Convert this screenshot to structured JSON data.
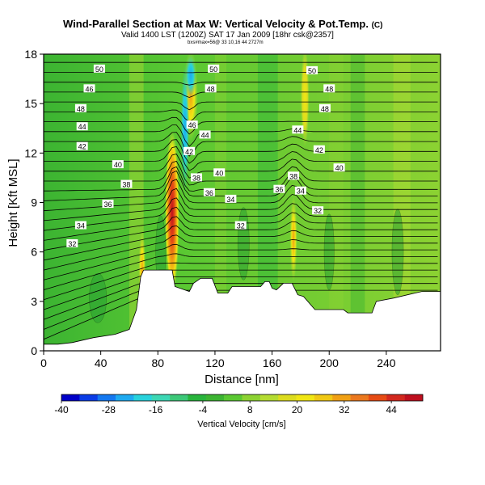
{
  "chart_data": {
    "type": "heatmap",
    "title": "Wind-Parallel Section at Max W: Vertical Velocity & Pot.Temp.",
    "title_mark": "(C)",
    "subtitle": "Valid 1400 LST (1200Z) SAT 17 Jan 2009",
    "subtitle_note": "[18hr csk@2357]",
    "small_text": "bxs#max=56@ 33 10,16 44 2727m",
    "xlabel": "Distance [nm]",
    "ylabel": "Height [Kft MSL]",
    "xlim": [
      0,
      278
    ],
    "ylim": [
      0,
      18
    ],
    "x_ticks": [
      0,
      40,
      80,
      120,
      160,
      200,
      240
    ],
    "y_ticks": [
      0,
      3,
      6,
      9,
      12,
      15,
      18
    ],
    "colorbar": {
      "label": "Vertical Velocity [cm/s]",
      "min": -40,
      "max": 52,
      "ticks": [
        -40,
        -28,
        -16,
        -4,
        8,
        20,
        32,
        44
      ],
      "colors": [
        "#0000c8",
        "#0a3ce6",
        "#1478f0",
        "#1eaaf0",
        "#28d2dc",
        "#3cd7b4",
        "#3cc878",
        "#28b43c",
        "#3cb432",
        "#5ac832",
        "#8cd232",
        "#b4dc32",
        "#dcdc1e",
        "#f0e614",
        "#f0c814",
        "#f0a014",
        "#eb781e",
        "#e64b14",
        "#d2281e",
        "#be0f1e"
      ]
    },
    "contour_labels": [
      {
        "text": "50",
        "x": 39,
        "y": 17.1
      },
      {
        "text": "46",
        "x": 32,
        "y": 15.9
      },
      {
        "text": "48",
        "x": 26,
        "y": 14.7
      },
      {
        "text": "44",
        "x": 27,
        "y": 13.6
      },
      {
        "text": "42",
        "x": 27,
        "y": 12.4
      },
      {
        "text": "40",
        "x": 52,
        "y": 11.3
      },
      {
        "text": "38",
        "x": 58,
        "y": 10.1
      },
      {
        "text": "36",
        "x": 45,
        "y": 8.9
      },
      {
        "text": "34",
        "x": 26,
        "y": 7.6
      },
      {
        "text": "32",
        "x": 20,
        "y": 6.5
      },
      {
        "text": "50",
        "x": 119,
        "y": 17.1
      },
      {
        "text": "48",
        "x": 117,
        "y": 15.9
      },
      {
        "text": "46",
        "x": 104,
        "y": 13.7
      },
      {
        "text": "44",
        "x": 113,
        "y": 13.1
      },
      {
        "text": "42",
        "x": 102,
        "y": 12.1
      },
      {
        "text": "38",
        "x": 107,
        "y": 10.5
      },
      {
        "text": "40",
        "x": 123,
        "y": 10.8
      },
      {
        "text": "36",
        "x": 116,
        "y": 9.6
      },
      {
        "text": "34",
        "x": 131,
        "y": 9.2
      },
      {
        "text": "32",
        "x": 138,
        "y": 7.6
      },
      {
        "text": "36",
        "x": 165,
        "y": 9.8
      },
      {
        "text": "38",
        "x": 175,
        "y": 10.6
      },
      {
        "text": "34",
        "x": 180,
        "y": 9.7
      },
      {
        "text": "32",
        "x": 192,
        "y": 8.5
      },
      {
        "text": "50",
        "x": 188,
        "y": 17.0
      },
      {
        "text": "48",
        "x": 200,
        "y": 15.9
      },
      {
        "text": "48",
        "x": 197,
        "y": 14.7
      },
      {
        "text": "44",
        "x": 178,
        "y": 13.4
      },
      {
        "text": "42",
        "x": 193,
        "y": 12.2
      },
      {
        "text": "40",
        "x": 207,
        "y": 11.1
      }
    ],
    "terrain": [
      [
        0,
        0.4
      ],
      [
        10,
        0.4
      ],
      [
        20,
        0.5
      ],
      [
        35,
        0.8
      ],
      [
        50,
        1.0
      ],
      [
        60,
        1.3
      ],
      [
        65,
        2.5
      ],
      [
        68,
        4.5
      ],
      [
        70,
        4.9
      ],
      [
        90,
        4.9
      ],
      [
        92,
        3.9
      ],
      [
        102,
        3.6
      ],
      [
        105,
        4.1
      ],
      [
        110,
        4.4
      ],
      [
        118,
        4.4
      ],
      [
        122,
        3.5
      ],
      [
        129,
        3.5
      ],
      [
        132,
        3.9
      ],
      [
        152,
        3.9
      ],
      [
        155,
        4.2
      ],
      [
        158,
        4.2
      ],
      [
        160,
        3.8
      ],
      [
        163,
        3.7
      ],
      [
        168,
        4.1
      ],
      [
        174,
        4.1
      ],
      [
        178,
        3.4
      ],
      [
        182,
        3.3
      ],
      [
        190,
        2.5
      ],
      [
        210,
        2.5
      ],
      [
        213,
        2.3
      ],
      [
        230,
        2.3
      ],
      [
        233,
        3.0
      ],
      [
        245,
        3.2
      ],
      [
        260,
        3.5
      ],
      [
        265,
        3.6
      ],
      [
        278,
        3.6
      ]
    ],
    "updrafts": [
      {
        "x": 90,
        "y": 8.4,
        "rx": 5,
        "ry": 5,
        "value": 50
      },
      {
        "x": 103,
        "y": 15.5,
        "rx": 5,
        "ry": 2.8,
        "value": 28
      },
      {
        "x": 69,
        "y": 4.9,
        "rx": 2.5,
        "ry": 2.4,
        "value": 22
      },
      {
        "x": 175,
        "y": 6.8,
        "rx": 2.6,
        "ry": 2.6,
        "value": 24
      },
      {
        "x": 183,
        "y": 15.4,
        "rx": 3,
        "ry": 3,
        "value": 18
      }
    ],
    "downdrafts": [
      {
        "x": 99,
        "y": 13.5,
        "rx": 3,
        "ry": 4,
        "value": -16
      },
      {
        "x": 103,
        "y": 16.7,
        "rx": 4,
        "ry": 1.3,
        "value": -20
      }
    ]
  }
}
